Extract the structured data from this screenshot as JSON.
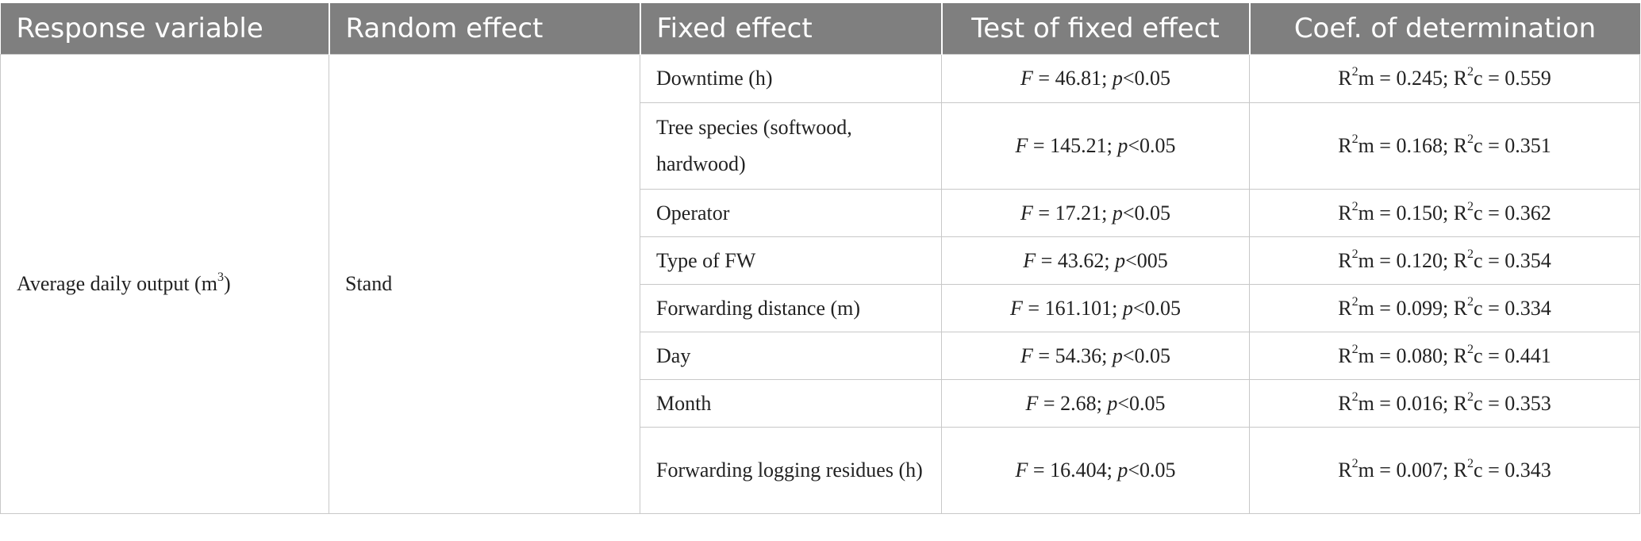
{
  "table": {
    "headers": [
      "Response variable",
      "Random effect",
      "Fixed effect",
      "Test of fixed effect",
      "Coef. of determination"
    ],
    "response_variable": {
      "text": "Average daily output (m",
      "sup": "3",
      "close": ")"
    },
    "random_effect": "Stand",
    "rows": [
      {
        "fixed_effect": "Downtime (h)",
        "f_value": "46.81",
        "p_value": "<0.05",
        "r2m": "0.245",
        "r2c": "0.559"
      },
      {
        "fixed_effect": "Tree species (softwood, hardwood)",
        "f_value": "145.21",
        "p_value": "<0.05",
        "r2m": "0.168",
        "r2c": "0.351"
      },
      {
        "fixed_effect": "Operator",
        "f_value": "17.21",
        "p_value": "<0.05",
        "r2m": "0.150",
        "r2c": "0.362"
      },
      {
        "fixed_effect": "Type of FW",
        "f_value": "43.62",
        "p_value": "<005",
        "r2m": "0.120",
        "r2c": "0.354"
      },
      {
        "fixed_effect": "Forwarding distance (m)",
        "f_value": "161.101",
        "p_value": "<0.05",
        "r2m": "0.099",
        "r2c": "0.334"
      },
      {
        "fixed_effect": "Day",
        "f_value": "54.36",
        "p_value": "<0.05",
        "r2m": "0.080",
        "r2c": "0.441"
      },
      {
        "fixed_effect": "Month",
        "f_value": "2.68",
        "p_value": "<0.05",
        "r2m": "0.016",
        "r2c": "0.353"
      },
      {
        "fixed_effect": "Forwarding logging residues (h)",
        "f_value": "16.404",
        "p_value": "<0.05",
        "r2m": "0.007",
        "r2c": "0.343"
      }
    ]
  },
  "notation": {
    "f_prefix": "F",
    "f_eq": " = ",
    "p_sep": "; ",
    "p_prefix": "p",
    "r_prefix": "R",
    "r_sup": "2",
    "m_suffix": "m = ",
    "c_suffix": "c = ",
    "r_sep": "; "
  }
}
